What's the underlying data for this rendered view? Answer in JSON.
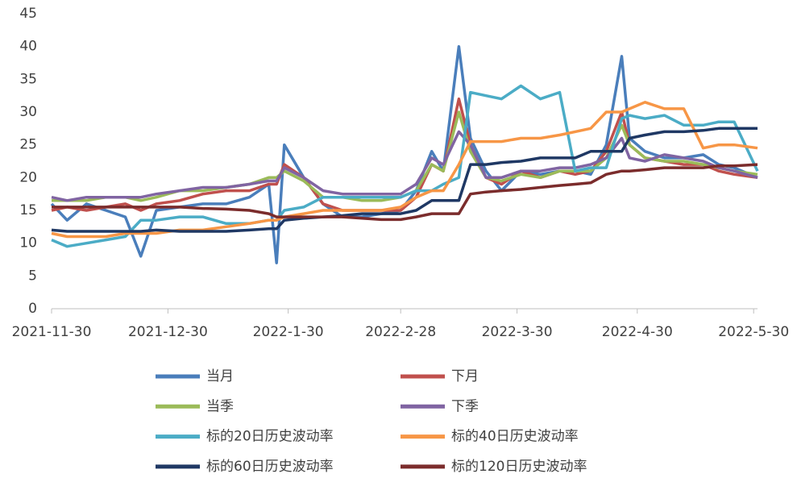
{
  "chart_data": {
    "type": "line",
    "x": [
      "2021-11-30",
      "2021-12-4",
      "2021-12-9",
      "2021-12-14",
      "2021-12-19",
      "2021-12-23",
      "2021-12-27",
      "2022-1-2",
      "2022-1-8",
      "2022-1-14",
      "2022-1-20",
      "2022-1-25",
      "2022-1-27",
      "2022-1-29",
      "2022-2-3",
      "2022-2-8",
      "2022-2-13",
      "2022-2-18",
      "2022-2-23",
      "2022-2-28",
      "2022-3-4",
      "2022-3-8",
      "2022-3-11",
      "2022-3-15",
      "2022-3-18",
      "2022-3-22",
      "2022-3-26",
      "2022-3-31",
      "2022-4-5",
      "2022-4-10",
      "2022-4-14",
      "2022-4-18",
      "2022-4-22",
      "2022-4-26",
      "2022-4-28",
      "2022-5-2",
      "2022-5-7",
      "2022-5-12",
      "2022-5-17",
      "2022-5-21",
      "2022-5-25",
      "2022-5-31"
    ],
    "series": [
      {
        "name": "当月",
        "color": "#4a7ebb",
        "values": [
          16,
          13.5,
          16,
          15,
          14,
          8,
          15,
          15.5,
          16,
          16,
          17,
          19,
          7,
          25,
          20,
          16,
          14,
          14,
          14.5,
          15,
          18,
          24,
          21,
          40,
          26,
          21,
          18,
          21,
          20.5,
          21,
          21,
          20.5,
          25,
          38.5,
          26,
          24,
          23,
          23,
          23.5,
          22,
          21.5,
          20
        ]
      },
      {
        "name": "下月",
        "color": "#c0504d",
        "values": [
          15,
          15.5,
          15,
          15.5,
          16,
          15,
          16,
          16.5,
          17.5,
          18,
          18,
          19,
          19,
          22,
          20,
          16,
          15,
          15,
          15,
          15,
          17,
          22,
          21,
          32,
          25,
          20,
          19,
          21,
          20,
          21,
          20.5,
          21,
          24,
          30,
          25,
          23,
          22.5,
          22,
          22,
          21,
          20.5,
          20
        ]
      },
      {
        "name": "当季",
        "color": "#9bbb59",
        "values": [
          16.5,
          16.5,
          16.5,
          17,
          17,
          16.5,
          17,
          18,
          18,
          18.5,
          19,
          20,
          20,
          21,
          19.5,
          17,
          17,
          16.5,
          16.5,
          17,
          18,
          22,
          21,
          30,
          24,
          20,
          19.5,
          20.5,
          20,
          21,
          21,
          21,
          23,
          28,
          25,
          23,
          22.5,
          22.5,
          22,
          21.5,
          21,
          20.5
        ]
      },
      {
        "name": "下季",
        "color": "#8064a2",
        "values": [
          17,
          16.5,
          17,
          17,
          17,
          17,
          17.5,
          18,
          18.5,
          18.5,
          19,
          19.5,
          19.5,
          21.5,
          20,
          18,
          17.5,
          17.5,
          17.5,
          17.5,
          19,
          23,
          22,
          27,
          25,
          20,
          20,
          21,
          21,
          21.5,
          21.5,
          22,
          23,
          26,
          23,
          22.5,
          23.5,
          23,
          22.5,
          21.5,
          21,
          20
        ]
      },
      {
        "name": "标的20日历史波动率",
        "color": "#4bacc6",
        "values": [
          10.5,
          9.5,
          10,
          10.5,
          11,
          13.5,
          13.5,
          14,
          14,
          13,
          13,
          13.5,
          13.5,
          15,
          15.5,
          17,
          17,
          17,
          17,
          17,
          18,
          18,
          19,
          20,
          33,
          32.5,
          32,
          34,
          32,
          33,
          21,
          21.5,
          21.5,
          29,
          29.5,
          29,
          29.5,
          28,
          28,
          28.5,
          28.5,
          21
        ]
      },
      {
        "name": "标的40日历史波动率",
        "color": "#f79646",
        "values": [
          11.5,
          11,
          11,
          11,
          11.5,
          11.5,
          11.5,
          12,
          12,
          12.5,
          13,
          13.5,
          13.5,
          14,
          14.5,
          15,
          15,
          15,
          15,
          15.5,
          17,
          18,
          18,
          22,
          25.5,
          25.5,
          25.5,
          26,
          26,
          26.5,
          27,
          27.5,
          30,
          30,
          30.5,
          31.5,
          30.5,
          30.5,
          24.5,
          25,
          25,
          24.5
        ]
      },
      {
        "name": "标的60日历史波动率",
        "color": "#1f3864",
        "values": [
          12,
          11.8,
          11.8,
          11.8,
          11.8,
          11.8,
          12,
          11.8,
          11.8,
          11.8,
          12,
          12.2,
          12.2,
          13.5,
          13.8,
          14,
          14.2,
          14.5,
          14.5,
          14.5,
          15,
          16.5,
          16.5,
          16.5,
          22,
          22,
          22.3,
          22.5,
          23,
          23,
          23,
          24,
          24,
          24,
          26,
          26.5,
          27,
          27,
          27.2,
          27.5,
          27.5,
          27.5
        ]
      },
      {
        "name": "标的120日历史波动率",
        "color": "#7b2c2c",
        "values": [
          15.5,
          15.5,
          15.5,
          15.5,
          15.5,
          15.5,
          15.5,
          15.5,
          15.3,
          15.2,
          15,
          14.5,
          14,
          14,
          14,
          14,
          14,
          13.8,
          13.6,
          13.6,
          14,
          14.5,
          14.5,
          14.5,
          17.5,
          17.8,
          18,
          18.2,
          18.5,
          18.8,
          19,
          19.2,
          20.5,
          21,
          21,
          21.2,
          21.5,
          21.5,
          21.5,
          21.8,
          21.8,
          22
        ]
      }
    ],
    "xlim": [
      "2021-11-30",
      "2022-5-31"
    ],
    "xticks": [
      "2021-11-30",
      "2021-12-30",
      "2022-1-30",
      "2022-2-28",
      "2022-3-30",
      "2022-4-30",
      "2022-5-30"
    ],
    "ylim": [
      0,
      45
    ],
    "yticks": [
      0,
      5,
      10,
      15,
      20,
      25,
      30,
      35,
      40,
      45
    ],
    "grid": false
  }
}
